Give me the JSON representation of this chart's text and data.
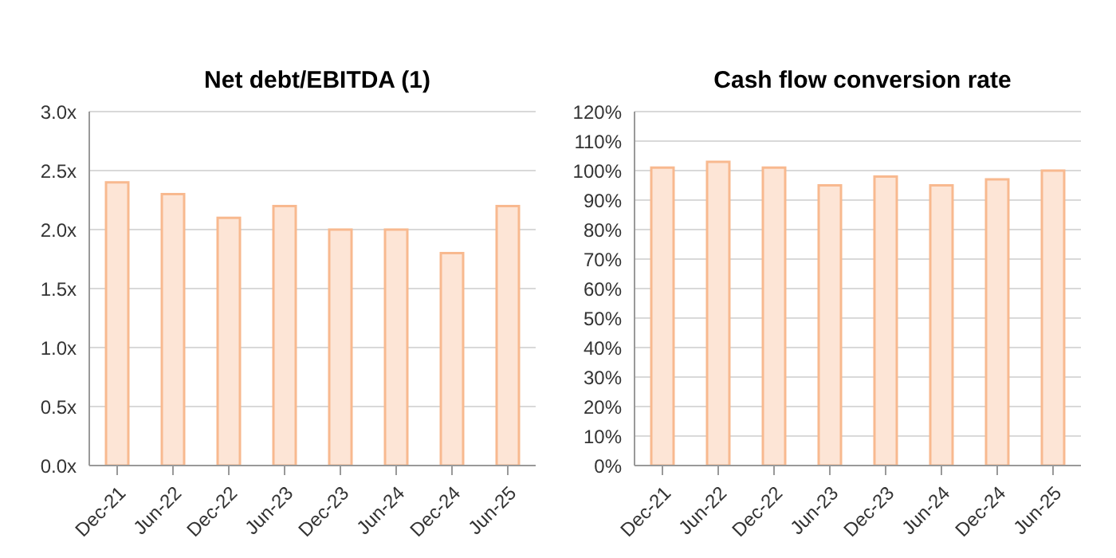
{
  "chart_data": [
    {
      "type": "bar",
      "title": "Net debt/EBITDA (1)",
      "categories": [
        "Dec-21",
        "Jun-22",
        "Dec-22",
        "Jun-23",
        "Dec-23",
        "Jun-24",
        "Dec-24",
        "Jun-25"
      ],
      "series": [
        {
          "color": "#fde5d6",
          "values": [
            2.4,
            2.3,
            2.1,
            2.2,
            2.0,
            2.0,
            1.8,
            2.2
          ]
        }
      ],
      "ylim": [
        0,
        3
      ],
      "yticks": [
        {
          "value": 0,
          "label": "0.0x"
        },
        {
          "value": 0.5,
          "label": "0.5x"
        },
        {
          "value": 1,
          "label": "1.0x"
        },
        {
          "value": 1.5,
          "label": "1.5x"
        },
        {
          "value": 2,
          "label": "2.0x"
        },
        {
          "value": 2.5,
          "label": "2.5x"
        },
        {
          "value": 3,
          "label": "3.0x"
        }
      ],
      "grid": "y",
      "legend": false
    },
    {
      "type": "bar",
      "title": "Cash flow conversion rate",
      "categories": [
        "Dec-21",
        "Jun-22",
        "Dec-22",
        "Jun-23",
        "Dec-23",
        "Jun-24",
        "Dec-24",
        "Jun-25"
      ],
      "series": [
        {
          "color": "#fde5d6",
          "values": [
            101,
            103,
            101,
            95,
            98,
            95,
            97,
            100
          ]
        }
      ],
      "ylim": [
        0,
        120
      ],
      "yticks": [
        {
          "value": 0,
          "label": "0%"
        },
        {
          "value": 10,
          "label": "10%"
        },
        {
          "value": 20,
          "label": "20%"
        },
        {
          "value": 30,
          "label": "30%"
        },
        {
          "value": 40,
          "label": "40%"
        },
        {
          "value": 50,
          "label": "50%"
        },
        {
          "value": 60,
          "label": "60%"
        },
        {
          "value": 70,
          "label": "70%"
        },
        {
          "value": 80,
          "label": "80%"
        },
        {
          "value": 90,
          "label": "90%"
        },
        {
          "value": 100,
          "label": "100%"
        },
        {
          "value": 110,
          "label": "110%"
        },
        {
          "value": 120,
          "label": "120%"
        }
      ],
      "grid": "y",
      "legend": false
    }
  ]
}
